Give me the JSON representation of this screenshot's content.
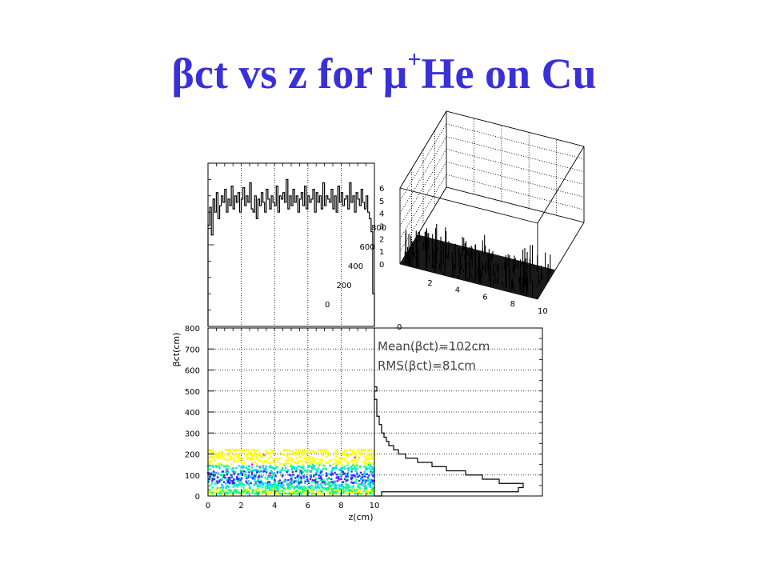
{
  "slide": {
    "title_greek_beta": "β",
    "title_mid": "ct vs z for ",
    "title_greek_mu": "μ",
    "title_sup": "+",
    "title_tail": "He on Cu"
  },
  "colors": {
    "title": "#3a30d8",
    "scatter_low": "#ffff00",
    "scatter_mid": "#00ff88",
    "scatter_high": "#00d8ff",
    "scatter_peak": "#3030ff",
    "scatter_max": "#ff00ff"
  },
  "chart_data": [
    {
      "id": "z_projection",
      "type": "line",
      "style": "step-histogram",
      "x": [
        0,
        0.1,
        0.2,
        0.3,
        0.4,
        0.5,
        0.6,
        0.7,
        0.8,
        0.9,
        1.0,
        1.1,
        1.2,
        1.3,
        1.4,
        1.5,
        1.6,
        1.7,
        1.8,
        1.9,
        2.0,
        2.1,
        2.2,
        2.3,
        2.4,
        2.5,
        2.6,
        2.7,
        2.8,
        2.9,
        3.0,
        3.1,
        3.2,
        3.3,
        3.4,
        3.5,
        3.6,
        3.7,
        3.8,
        3.9,
        4.0,
        4.1,
        4.2,
        4.3,
        4.4,
        4.5,
        4.6,
        4.7,
        4.8,
        4.9,
        5.0,
        5.1,
        5.2,
        5.3,
        5.4,
        5.5,
        5.6,
        5.7,
        5.8,
        5.9,
        6.0,
        6.1,
        6.2,
        6.3,
        6.4,
        6.5,
        6.6,
        6.7,
        6.8,
        6.9,
        7.0,
        7.1,
        7.2,
        7.3,
        7.4,
        7.5,
        7.6,
        7.7,
        7.8,
        7.9,
        8.0,
        8.1,
        8.2,
        8.3,
        8.4,
        8.5,
        8.6,
        8.7,
        8.8,
        8.9,
        9.0,
        9.1,
        9.2,
        9.3,
        9.4,
        9.5,
        9.6,
        9.7,
        9.8,
        9.9
      ],
      "values": [
        62,
        73,
        56,
        78,
        70,
        82,
        66,
        74,
        80,
        76,
        84,
        70,
        78,
        74,
        86,
        72,
        80,
        76,
        82,
        70,
        78,
        85,
        74,
        80,
        76,
        88,
        72,
        70,
        80,
        66,
        78,
        74,
        82,
        76,
        70,
        84,
        78,
        72,
        80,
        76,
        74,
        86,
        70,
        80,
        78,
        82,
        76,
        90,
        72,
        80,
        74,
        84,
        76,
        80,
        70,
        78,
        82,
        74,
        86,
        72,
        80,
        76,
        78,
        84,
        70,
        82,
        76,
        80,
        72,
        88,
        74,
        80,
        78,
        76,
        84,
        72,
        80,
        70,
        86,
        76,
        82,
        74,
        78,
        80,
        72,
        88,
        76,
        80,
        70,
        82,
        78,
        74,
        84,
        76,
        72,
        80,
        70,
        66,
        58,
        20
      ],
      "xlim": [
        0,
        10
      ],
      "ylim": [
        0,
        100
      ],
      "grid": true
    },
    {
      "id": "betact_vs_z_scatter",
      "type": "scatter",
      "style": "colored 2D density",
      "xlabel": "z(cm)",
      "ylabel": "βct(cm)",
      "xlim": [
        0,
        10
      ],
      "ylim": [
        0,
        800
      ],
      "x_ticks": [
        "0",
        "2",
        "4",
        "6",
        "8",
        "10"
      ],
      "y_ticks": [
        "0",
        "100",
        "200",
        "300",
        "400",
        "500",
        "600",
        "700",
        "800"
      ],
      "density_band": {
        "z_range": [
          0,
          10
        ],
        "betact_range": [
          0,
          220
        ],
        "peak_betact": 90
      },
      "grid": true
    },
    {
      "id": "betact_projection",
      "type": "line",
      "style": "step-histogram (horizontal)",
      "bin_lower_edges_betact": [
        0,
        20,
        40,
        60,
        80,
        100,
        120,
        140,
        160,
        180,
        200,
        220,
        240,
        260,
        280,
        300,
        320,
        340,
        360,
        380,
        400,
        420,
        440,
        460,
        480,
        500
      ],
      "counts": [
        3,
        60,
        62,
        52,
        45,
        38,
        30,
        24,
        18,
        13,
        10,
        8,
        6,
        5,
        4,
        3,
        3,
        2,
        2,
        1,
        1,
        1,
        1,
        0,
        0,
        1
      ],
      "counts_max": 70,
      "ylim": [
        0,
        800
      ],
      "annotations": [
        {
          "label": "Mean(βct)=102cm"
        },
        {
          "label": "RMS(βct)=81cm"
        }
      ],
      "grid": true
    },
    {
      "id": "lego_3d",
      "type": "heatmap",
      "style": "3D lego plot",
      "z_axis_ticks": [
        "0",
        "1",
        "2",
        "3",
        "4",
        "5",
        "6"
      ],
      "betact_axis_ticks": [
        "0",
        "200",
        "400",
        "600",
        "800"
      ],
      "z_cm_axis_ticks": [
        "0",
        "2",
        "4",
        "6",
        "8",
        "10"
      ],
      "zlim": [
        0,
        6
      ]
    }
  ]
}
